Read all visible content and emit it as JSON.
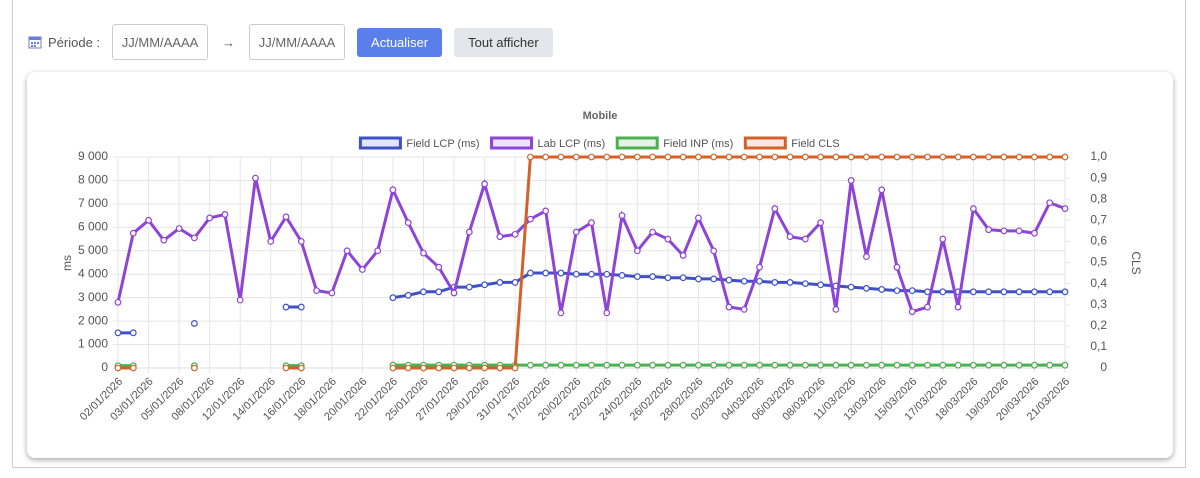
{
  "filters": {
    "label": "Période :",
    "start_placeholder": "JJ/MM/AAAA",
    "arrow": "→",
    "end_placeholder": "JJ/MM/AAAA",
    "buttons": [
      "Actualiser",
      "Tout afficher"
    ]
  },
  "chart_data": {
    "type": "line",
    "title": "Mobile",
    "categories": [
      "02/01/2026",
      null,
      "03/01/2026",
      null,
      "05/01/2026",
      null,
      "08/01/2026",
      null,
      "12/01/2026",
      null,
      "14/01/2026",
      null,
      "16/01/2026",
      null,
      "18/01/2026",
      null,
      "20/01/2026",
      null,
      "22/01/2026",
      null,
      "25/01/2026",
      null,
      "27/01/2026",
      null,
      "29/01/2026",
      null,
      "31/01/2026",
      null,
      "17/02/2026",
      null,
      "20/02/2026",
      null,
      "22/02/2026",
      null,
      "24/02/2026",
      null,
      "26/02/2026",
      null,
      "28/02/2026",
      null,
      "02/03/2026",
      null,
      "04/03/2026",
      null,
      "06/03/2026",
      null,
      "08/03/2026",
      null,
      "11/03/2026",
      null,
      "13/03/2026",
      null,
      "15/03/2026",
      null,
      "17/03/2026",
      null,
      "18/03/2026",
      null,
      "19/03/2026",
      null,
      "20/03/2026",
      null,
      "21/03/2026"
    ],
    "series": [
      {
        "name": "Field LCP (ms)",
        "color": "#3f51c7",
        "axis": "y",
        "values": [
          1500,
          1500,
          null,
          null,
          null,
          1900,
          null,
          null,
          null,
          null,
          null,
          2600,
          2600,
          null,
          null,
          null,
          null,
          null,
          3000,
          3100,
          3250,
          3250,
          3450,
          3450,
          3550,
          3650,
          3650,
          4050,
          4050,
          4050,
          4000,
          4000,
          4000,
          3950,
          3900,
          3900,
          3850,
          3850,
          3800,
          3800,
          3750,
          3700,
          3700,
          3650,
          3650,
          3600,
          3550,
          3500,
          3450,
          3400,
          3350,
          3300,
          3300,
          3250,
          3250,
          3250,
          3250,
          3250,
          3250,
          3250,
          3250,
          3250,
          3250
        ]
      },
      {
        "name": "Lab LCP (ms)",
        "color": "#8e44d8",
        "axis": "y",
        "values": [
          2800,
          5750,
          6300,
          5450,
          5950,
          5550,
          6400,
          6550,
          2900,
          8100,
          5400,
          6450,
          5400,
          3300,
          3200,
          5000,
          4200,
          5000,
          7600,
          6200,
          4900,
          4300,
          3200,
          5800,
          7850,
          5600,
          5700,
          6350,
          6700,
          2350,
          5800,
          6200,
          2350,
          6500,
          5000,
          5800,
          5500,
          4800,
          6400,
          5000,
          2600,
          2500,
          4300,
          6800,
          5600,
          5500,
          6200,
          2500,
          8000,
          4750,
          7600,
          4300,
          2400,
          2600,
          5500,
          2600,
          6800,
          5900,
          5850,
          5850,
          5750,
          7050,
          6800
        ]
      },
      {
        "name": "Field INP (ms)",
        "color": "#4caf50",
        "axis": "y",
        "values": [
          100,
          100,
          null,
          null,
          null,
          100,
          null,
          null,
          null,
          null,
          null,
          100,
          100,
          null,
          null,
          null,
          null,
          null,
          120,
          120,
          120,
          120,
          120,
          120,
          120,
          120,
          120,
          120,
          120,
          120,
          120,
          120,
          120,
          120,
          120,
          120,
          120,
          120,
          120,
          120,
          120,
          120,
          120,
          120,
          120,
          120,
          120,
          120,
          120,
          120,
          120,
          120,
          120,
          120,
          120,
          120,
          120,
          120,
          120,
          120,
          120,
          120,
          120
        ]
      },
      {
        "name": "Field CLS",
        "color": "#d2622a",
        "axis": "y2",
        "values": [
          0,
          0,
          null,
          null,
          null,
          0,
          null,
          null,
          null,
          null,
          null,
          0,
          0,
          null,
          null,
          null,
          null,
          null,
          0,
          0,
          0,
          0,
          0,
          0,
          0,
          0,
          0,
          1,
          1,
          1,
          1,
          1,
          1,
          1,
          1,
          1,
          1,
          1,
          1,
          1,
          1,
          1,
          1,
          1,
          1,
          1,
          1,
          1,
          1,
          1,
          1,
          1,
          1,
          1,
          1,
          1,
          1,
          1,
          1,
          1,
          1,
          1,
          1
        ]
      }
    ],
    "y_label": "ms",
    "y2_label": "CLS",
    "ylim": [
      0,
      9000
    ],
    "yticks": [
      0,
      {
        "value": 1000,
        "label": "1 000"
      },
      {
        "value": 2000,
        "label": "2 000"
      },
      {
        "value": 3000,
        "label": "3 000"
      },
      {
        "value": 4000,
        "label": "4 000"
      },
      {
        "value": 5000,
        "label": "5 000"
      },
      {
        "value": 6000,
        "label": "6 000"
      },
      {
        "value": 7000,
        "label": "7 000"
      },
      {
        "value": 8000,
        "label": "8 000"
      },
      {
        "value": 9000,
        "label": "9 000"
      }
    ],
    "y2lim": [
      0,
      1
    ],
    "y2ticks": [
      0,
      {
        "value": 0.1,
        "label": "0,1"
      },
      {
        "value": 0.2,
        "label": "0,2"
      },
      {
        "value": 0.3,
        "label": "0,3"
      },
      {
        "value": 0.4,
        "label": "0,4"
      },
      {
        "value": 0.5,
        "label": "0,5"
      },
      {
        "value": 0.6,
        "label": "0,6"
      },
      {
        "value": 0.7,
        "label": "0,7"
      },
      {
        "value": 0.8,
        "label": "0,8"
      },
      {
        "value": 0.9,
        "label": "0,9"
      },
      {
        "value": 1,
        "label": "1,0"
      }
    ],
    "grid": true,
    "legend": "top"
  }
}
